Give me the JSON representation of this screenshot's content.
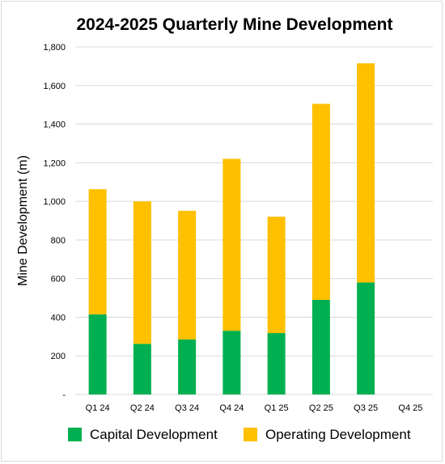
{
  "chart_data": {
    "type": "bar",
    "stacked": true,
    "title": "2024-2025 Quarterly Mine Development",
    "xlabel": "",
    "ylabel": "Mine Development (m)",
    "ylim": [
      0,
      1800
    ],
    "yticks": [
      0,
      200,
      400,
      600,
      800,
      1000,
      1200,
      1400,
      1600,
      1800
    ],
    "ytick_labels": [
      "-",
      "200",
      "400",
      "600",
      "800",
      "1,000",
      "1,200",
      "1,400",
      "1,600",
      "1,800"
    ],
    "grid": true,
    "legend_position": "bottom",
    "categories": [
      "Q1 24",
      "Q2 24",
      "Q3 24",
      "Q4 24",
      "Q1 25",
      "Q2 25",
      "Q3 25",
      "Q4 25"
    ],
    "series": [
      {
        "name": "Capital Development",
        "color": "#00b050",
        "values": [
          415,
          262,
          285,
          330,
          318,
          490,
          580,
          0
        ]
      },
      {
        "name": "Operating Development",
        "color": "#ffc000",
        "values": [
          648,
          738,
          666,
          890,
          603,
          1015,
          1135,
          0
        ]
      }
    ]
  }
}
